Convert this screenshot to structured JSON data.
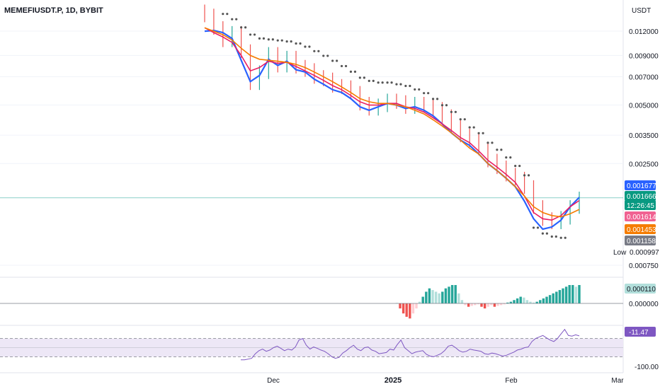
{
  "header": {
    "symbol": "MEMEFIUSDT.P, 1D, BYBIT",
    "currency": "USDT"
  },
  "price_scale": {
    "ticks": [
      "0.012000",
      "0.009000",
      "0.007000",
      "0.005000",
      "0.003500",
      "0.002500",
      "0.000750"
    ],
    "low_label": "Low",
    "low_value": "0.000997"
  },
  "price_tags": [
    {
      "text": "0.001677",
      "color": "#2962ff"
    },
    {
      "text": "0.001666",
      "color": "#089981"
    },
    {
      "text": "12:26:45",
      "color": "#089981"
    },
    {
      "text": "0.001614",
      "color": "#f06292"
    },
    {
      "text": "0.001453",
      "color": "#f57c00"
    },
    {
      "text": "0.001158",
      "color": "#787b86"
    }
  ],
  "macd_scale": {
    "tag": "0.000110",
    "zero": "0.000000"
  },
  "rsi_scale": {
    "tag": "-11.47",
    "bottom": "-100.00"
  },
  "time_axis": {
    "labels": [
      "Dec",
      "2025",
      "Feb",
      "Mar"
    ]
  },
  "colors": {
    "up": "#26a69a",
    "down": "#ef5350",
    "ma_fast": "#2962ff",
    "ma_mid": "#e91e63",
    "ma_slow": "#f57c00",
    "sar": "#555555",
    "rsi": "#7e57c2",
    "rsi_band": "#ede7f6"
  },
  "chart_data": {
    "type": "line",
    "title": "MEMEFIUSDT.P, 1D, BYBIT",
    "y_scale": "log",
    "ylim": [
      0.00075,
      0.0135
    ],
    "x_labels": [
      "Dec",
      "2025",
      "Feb",
      "Mar"
    ],
    "series": [
      {
        "role": "price",
        "values": [
          0.0145,
          0.0125,
          0.0108,
          0.0118,
          0.0095,
          0.0065,
          0.0074,
          0.0092,
          0.008,
          0.0088,
          0.0079,
          0.0076,
          0.007,
          0.0068,
          0.0063,
          0.0062,
          0.0058,
          0.0051,
          0.0048,
          0.005,
          0.0053,
          0.0052,
          0.0049,
          0.0051,
          0.005,
          0.0048,
          0.0044,
          0.0039,
          0.0035,
          0.0033,
          0.003,
          0.0026,
          0.0024,
          0.0022,
          0.0021,
          0.0019,
          0.0015,
          0.0013,
          0.00125,
          0.00132,
          0.0015,
          0.00166
        ]
      },
      {
        "role": "ma_fast",
        "values": [
          0.012,
          0.0121,
          0.0118,
          0.011,
          0.0085,
          0.0066,
          0.0071,
          0.0086,
          0.008,
          0.0084,
          0.0076,
          0.0074,
          0.0068,
          0.0064,
          0.006,
          0.0058,
          0.0054,
          0.0049,
          0.0047,
          0.0049,
          0.0051,
          0.005,
          0.0048,
          0.0049,
          0.0047,
          0.0044,
          0.004,
          0.0036,
          0.0033,
          0.0031,
          0.0028,
          0.0025,
          0.0023,
          0.0021,
          0.0019,
          0.0016,
          0.0013,
          0.00115,
          0.00118,
          0.00128,
          0.0015,
          0.001677
        ]
      },
      {
        "role": "ma_mid",
        "values": [
          0.0125,
          0.0118,
          0.0112,
          0.0105,
          0.009,
          0.0075,
          0.0078,
          0.0084,
          0.0082,
          0.0083,
          0.0079,
          0.0075,
          0.0071,
          0.0067,
          0.0063,
          0.006,
          0.0056,
          0.0052,
          0.005,
          0.005,
          0.0051,
          0.0051,
          0.0049,
          0.0048,
          0.0046,
          0.0043,
          0.004,
          0.0037,
          0.0034,
          0.0032,
          0.0029,
          0.0026,
          0.0024,
          0.0022,
          0.002,
          0.0017,
          0.0014,
          0.0013,
          0.00128,
          0.00135,
          0.0015,
          0.001614
        ]
      },
      {
        "role": "ma_slow",
        "values": [
          0.0125,
          0.012,
          0.0115,
          0.0108,
          0.0098,
          0.009,
          0.0086,
          0.0085,
          0.0084,
          0.0083,
          0.0081,
          0.0078,
          0.0074,
          0.007,
          0.0066,
          0.0062,
          0.0058,
          0.0054,
          0.0052,
          0.0051,
          0.0051,
          0.005,
          0.0049,
          0.0047,
          0.0045,
          0.0042,
          0.0039,
          0.0036,
          0.0033,
          0.003,
          0.0028,
          0.0025,
          0.0023,
          0.0021,
          0.0019,
          0.0017,
          0.0015,
          0.0014,
          0.00135,
          0.00133,
          0.00138,
          0.001453
        ]
      }
    ],
    "macd_histogram": [
      0,
      0,
      0,
      0,
      0,
      0,
      0,
      0,
      0,
      0,
      0,
      0,
      0,
      0,
      0,
      0,
      0,
      0,
      0,
      0,
      0,
      0,
      0,
      0,
      0,
      0,
      0,
      0,
      0,
      0,
      0,
      0,
      0,
      0,
      0,
      0,
      0,
      0,
      0,
      0,
      0,
      0,
      0,
      0,
      0,
      0,
      0,
      0,
      0,
      0,
      0,
      0,
      0,
      0,
      0,
      0,
      0,
      0,
      0,
      2e-06,
      -3e-05,
      -6e-05,
      -8e-05,
      -9e-05,
      -6e-05,
      -3e-05,
      1e-05,
      4e-05,
      7e-05,
      9e-05,
      8e-05,
      7e-05,
      6e-05,
      7e-05,
      9e-05,
      0.0001,
      0.00011,
      0.00011,
      6e-05,
      2e-05,
      -1e-05,
      -2e-05,
      -1.5e-05,
      -1e-05,
      -5e-06,
      -2e-05,
      -3e-05,
      -2e-05,
      -1e-05,
      -2e-05,
      -1.5e-05,
      -1e-05,
      -5e-06,
      5e-06,
      1e-05,
      2e-05,
      3e-05,
      4e-05,
      3.5e-05,
      2e-05,
      1e-05,
      5e-06,
      1e-05,
      2e-05,
      3e-05,
      4e-05,
      5e-05,
      6e-05,
      7e-05,
      8e-05,
      9e-05,
      0.0001,
      0.00011,
      0.00011,
      0.0001,
      0.00011
    ],
    "rsi": [
      -90,
      -90,
      -88,
      -85,
      -70,
      -60,
      -55,
      -62,
      -58,
      -50,
      -45,
      -52,
      -60,
      -55,
      -58,
      -48,
      -25,
      -20,
      -42,
      -55,
      -48,
      -52,
      -58,
      -62,
      -70,
      -80,
      -85,
      -82,
      -68,
      -60,
      -50,
      -42,
      -55,
      -60,
      -50,
      -48,
      -58,
      -62,
      -70,
      -68,
      -66,
      -55,
      -58,
      -40,
      -25,
      -50,
      -60,
      -70,
      -65,
      -62,
      -60,
      -72,
      -78,
      -80,
      -75,
      -70,
      -60,
      -45,
      -42,
      -50,
      -60,
      -65,
      -62,
      -55,
      -58,
      -60,
      -62,
      -70,
      -72,
      -68,
      -70,
      -74,
      -78,
      -75,
      -70,
      -65,
      -58,
      -55,
      -50,
      -48,
      -30,
      -20,
      -15,
      -10,
      -18,
      -25,
      -30,
      -20,
      -5,
      10,
      -10,
      -12,
      -8,
      -11.47
    ]
  }
}
